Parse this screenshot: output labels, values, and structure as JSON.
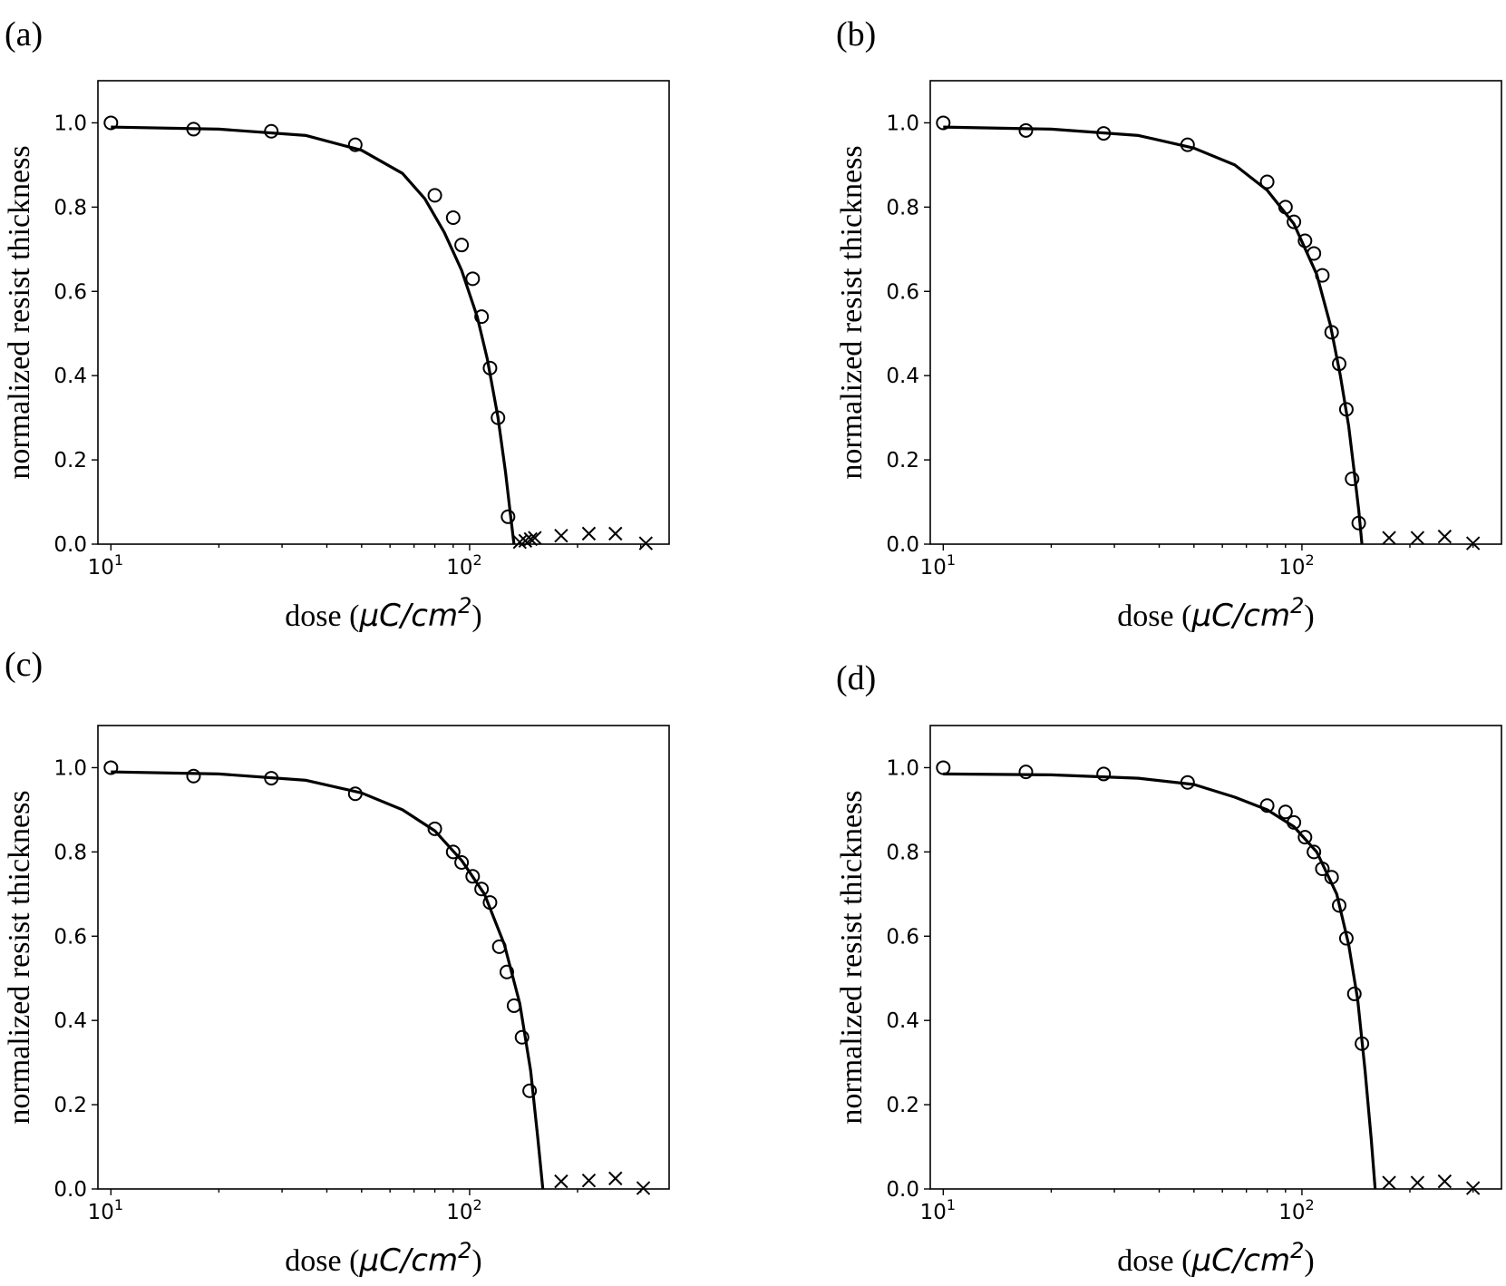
{
  "chart_data": [
    {
      "panel_label": "(a)",
      "type": "scatter",
      "xscale": "log",
      "xlabel_prefix": "dose (",
      "xlabel_unit": "μC/cm",
      "xlabel_exp": "2",
      "xlabel_suffix": ")",
      "ylabel": "normalized resist thickness",
      "xlim": [
        9.2,
        360
      ],
      "ylim": [
        0,
        1.1
      ],
      "xticks": [
        {
          "value": 10,
          "base": "10",
          "exp": "1"
        },
        {
          "value": 100,
          "base": "10",
          "exp": "2"
        }
      ],
      "yticks": [
        "0.0",
        "0.2",
        "0.4",
        "0.6",
        "0.8",
        "1.0"
      ],
      "grid": false,
      "series": [
        {
          "marker": "circle",
          "x": [
            10,
            17,
            28,
            48,
            80,
            90,
            95,
            102,
            108,
            114,
            120,
            128
          ],
          "y": [
            1.0,
            0.985,
            0.98,
            0.948,
            0.828,
            0.775,
            0.71,
            0.63,
            0.54,
            0.418,
            0.3,
            0.065
          ]
        },
        {
          "marker": "x",
          "x": [
            138,
            143,
            148,
            152,
            180,
            215,
            255,
            310
          ],
          "y": [
            0.005,
            0.008,
            0.012,
            0.015,
            0.02,
            0.025,
            0.025,
            0.002
          ]
        },
        {
          "marker": "line",
          "x": [
            10,
            20,
            35,
            50,
            65,
            75,
            85,
            95,
            105,
            112,
            120,
            126,
            130,
            133
          ],
          "y": [
            0.99,
            0.985,
            0.97,
            0.935,
            0.88,
            0.82,
            0.74,
            0.65,
            0.54,
            0.44,
            0.3,
            0.17,
            0.07,
            0.0
          ]
        }
      ]
    },
    {
      "panel_label": "(b)",
      "type": "scatter",
      "xscale": "log",
      "xlabel_prefix": "dose (",
      "xlabel_unit": "μC/cm",
      "xlabel_exp": "2",
      "xlabel_suffix": ")",
      "ylabel": "normalized resist thickness",
      "xlim": [
        9.2,
        360
      ],
      "ylim": [
        0,
        1.1
      ],
      "xticks": [
        {
          "value": 10,
          "base": "10",
          "exp": "1"
        },
        {
          "value": 100,
          "base": "10",
          "exp": "2"
        }
      ],
      "yticks": [
        "0.0",
        "0.2",
        "0.4",
        "0.6",
        "0.8",
        "1.0"
      ],
      "grid": false,
      "series": [
        {
          "marker": "circle",
          "x": [
            10,
            17,
            28,
            48,
            80,
            90,
            95,
            102,
            108,
            114,
            121,
            127,
            133,
            138,
            144
          ],
          "y": [
            1.0,
            0.982,
            0.975,
            0.948,
            0.86,
            0.8,
            0.765,
            0.72,
            0.69,
            0.638,
            0.503,
            0.428,
            0.32,
            0.155,
            0.05
          ]
        },
        {
          "marker": "x",
          "x": [
            175,
            210,
            250,
            300
          ],
          "y": [
            0.015,
            0.015,
            0.018,
            0.002
          ]
        },
        {
          "marker": "line",
          "x": [
            10,
            20,
            35,
            50,
            65,
            80,
            95,
            110,
            120,
            128,
            135,
            140,
            144,
            147
          ],
          "y": [
            0.99,
            0.985,
            0.97,
            0.94,
            0.9,
            0.84,
            0.76,
            0.64,
            0.52,
            0.4,
            0.28,
            0.17,
            0.08,
            0.0
          ]
        }
      ]
    },
    {
      "panel_label": "(c)",
      "type": "scatter",
      "xscale": "log",
      "xlabel_prefix": "dose (",
      "xlabel_unit": "μC/cm",
      "xlabel_exp": "2",
      "xlabel_suffix": ")",
      "ylabel": "normalized resist thickness",
      "xlim": [
        9.2,
        360
      ],
      "ylim": [
        0,
        1.1
      ],
      "xticks": [
        {
          "value": 10,
          "base": "10",
          "exp": "1"
        },
        {
          "value": 100,
          "base": "10",
          "exp": "2"
        }
      ],
      "yticks": [
        "0.0",
        "0.2",
        "0.4",
        "0.6",
        "0.8",
        "1.0"
      ],
      "grid": false,
      "series": [
        {
          "marker": "circle",
          "x": [
            10,
            17,
            28,
            48,
            80,
            90,
            95,
            102,
            108,
            114,
            121,
            127,
            133,
            140,
            147
          ],
          "y": [
            1.0,
            0.98,
            0.975,
            0.938,
            0.855,
            0.8,
            0.775,
            0.742,
            0.712,
            0.68,
            0.575,
            0.515,
            0.435,
            0.36,
            0.233
          ]
        },
        {
          "marker": "x",
          "x": [
            180,
            215,
            255,
            305
          ],
          "y": [
            0.018,
            0.02,
            0.025,
            0.002
          ]
        },
        {
          "marker": "line",
          "x": [
            10,
            20,
            35,
            50,
            65,
            80,
            95,
            110,
            125,
            138,
            148,
            155,
            160
          ],
          "y": [
            0.99,
            0.985,
            0.97,
            0.94,
            0.9,
            0.85,
            0.78,
            0.7,
            0.58,
            0.44,
            0.28,
            0.12,
            0.0
          ]
        }
      ]
    },
    {
      "panel_label": "(d)",
      "type": "scatter",
      "xscale": "log",
      "xlabel_prefix": "dose (",
      "xlabel_unit": "μC/cm",
      "xlabel_exp": "2",
      "xlabel_suffix": ")",
      "ylabel": "normalized resist thickness",
      "xlim": [
        9.2,
        360
      ],
      "ylim": [
        0,
        1.1
      ],
      "xticks": [
        {
          "value": 10,
          "base": "10",
          "exp": "1"
        },
        {
          "value": 100,
          "base": "10",
          "exp": "2"
        }
      ],
      "yticks": [
        "0.0",
        "0.2",
        "0.4",
        "0.6",
        "0.8",
        "1.0"
      ],
      "grid": false,
      "series": [
        {
          "marker": "circle",
          "x": [
            10,
            17,
            28,
            48,
            80,
            90,
            95,
            102,
            108,
            114,
            121,
            127,
            133,
            140,
            147
          ],
          "y": [
            1.0,
            0.99,
            0.985,
            0.965,
            0.91,
            0.895,
            0.87,
            0.835,
            0.8,
            0.76,
            0.74,
            0.673,
            0.595,
            0.463,
            0.345
          ]
        },
        {
          "marker": "x",
          "x": [
            175,
            210,
            250,
            300
          ],
          "y": [
            0.015,
            0.015,
            0.018,
            0.002
          ]
        },
        {
          "marker": "line",
          "x": [
            10,
            20,
            35,
            50,
            65,
            80,
            95,
            110,
            125,
            135,
            143,
            150,
            156,
            160
          ],
          "y": [
            0.985,
            0.983,
            0.975,
            0.96,
            0.93,
            0.9,
            0.86,
            0.8,
            0.7,
            0.58,
            0.45,
            0.28,
            0.12,
            0.0
          ]
        }
      ]
    }
  ]
}
